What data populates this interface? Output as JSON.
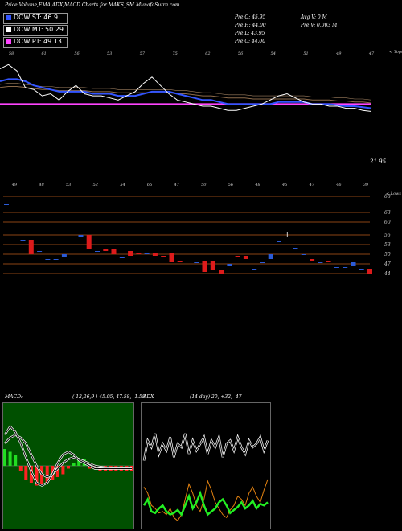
{
  "header": {
    "title": "Price,Volume,EMA,ADX,MACD Charts for MAKS_SM MunafaSutra.com"
  },
  "legend": [
    {
      "label": "DOW ST: 46.9",
      "color": "#3355ff"
    },
    {
      "label": "DOW MT: 50.29",
      "color": "#ffffff"
    },
    {
      "label": "DOW PT: 49.13",
      "color": "#ff44ff"
    }
  ],
  "stats": {
    "prev_open": "Pre   O: 45.95",
    "prev_high": "Pre   H: 44.00",
    "prev_low": "Pre   L: 43.95",
    "prev_close": "Pre   C: 44.00",
    "avg_volume": "Avg V: 0   M",
    "prev_volume": "Pre   V: 0.003 M"
  },
  "ema_panel": {
    "corner_label": "< Tops",
    "last_value": "21.95",
    "top_labels": [
      "58",
      "61",
      "56",
      "53",
      "57",
      "75",
      "62",
      "56",
      "54",
      "51",
      "49",
      "47"
    ],
    "bottom_labels": [
      "49",
      "48",
      "53",
      "52",
      "54",
      "65",
      "47",
      "50",
      "56",
      "48",
      "45",
      "47",
      "46",
      "39"
    ],
    "series_colors": {
      "price": "#ffffff",
      "ema_short": "#3355ff",
      "ema_long": "#8c6a4a",
      "ema_pt": "#ff44ff"
    }
  },
  "price_panel": {
    "corner_label": "< Lows",
    "axis_ticks": [
      "68",
      "63",
      "60",
      "56",
      "53",
      "50",
      "47",
      "44"
    ]
  },
  "macd": {
    "label": "MACD:",
    "params": "( 12,26,9 ) 45.95, 47.58, -1.58"
  },
  "adx": {
    "label": "ADX",
    "params": "(14 day) 20, +32, -47"
  },
  "chart_data": {
    "type": "candlestick",
    "title": "Price,Volume,EMA,ADX,MACD Charts for MAKS_SM MunafaSutra.com",
    "ylim": [
      42,
      70
    ],
    "horizontal_levels": [
      68,
      63,
      60,
      56,
      53,
      50,
      47,
      44
    ],
    "candles": [
      {
        "o": 65.5,
        "c": 65.5,
        "h": 65.5,
        "l": 65.5
      },
      {
        "o": 62.0,
        "c": 62.0,
        "h": 62.0,
        "l": 62.0
      },
      {
        "o": 54.5,
        "c": 54.5,
        "h": 54.5,
        "l": 54.5
      },
      {
        "o": 54.5,
        "c": 50.0,
        "h": 54.5,
        "l": 50.0
      },
      {
        "o": 51.0,
        "c": 51.0,
        "h": 51.0,
        "l": 51.0
      },
      {
        "o": 48.5,
        "c": 48.5,
        "h": 48.5,
        "l": 48.5
      },
      {
        "o": 48.5,
        "c": 48.5,
        "h": 48.5,
        "l": 48.5
      },
      {
        "o": 49.0,
        "c": 50.0,
        "h": 50.0,
        "l": 49.0
      },
      {
        "o": 53.0,
        "c": 53.0,
        "h": 53.0,
        "l": 53.0
      },
      {
        "o": 55.5,
        "c": 56.0,
        "h": 56.0,
        "l": 55.5
      },
      {
        "o": 56.0,
        "c": 51.5,
        "h": 56.0,
        "l": 51.5
      },
      {
        "o": 51.0,
        "c": 51.0,
        "h": 51.0,
        "l": 51.0
      },
      {
        "o": 51.5,
        "c": 51.0,
        "h": 51.5,
        "l": 51.0
      },
      {
        "o": 51.5,
        "c": 50.0,
        "h": 51.5,
        "l": 50.0
      },
      {
        "o": 49.0,
        "c": 49.0,
        "h": 49.0,
        "l": 49.0
      },
      {
        "o": 51.0,
        "c": 49.5,
        "h": 51.0,
        "l": 49.5
      },
      {
        "o": 50.5,
        "c": 50.0,
        "h": 50.5,
        "l": 50.0
      },
      {
        "o": 50.0,
        "c": 50.5,
        "h": 50.5,
        "l": 50.0
      },
      {
        "o": 50.5,
        "c": 49.5,
        "h": 50.5,
        "l": 49.5
      },
      {
        "o": 49.5,
        "c": 49.0,
        "h": 49.5,
        "l": 49.0
      },
      {
        "o": 50.5,
        "c": 47.5,
        "h": 50.5,
        "l": 47.5
      },
      {
        "o": 48.0,
        "c": 47.5,
        "h": 48.0,
        "l": 47.5
      },
      {
        "o": 48.0,
        "c": 48.0,
        "h": 48.0,
        "l": 48.0
      },
      {
        "o": 47.5,
        "c": 47.5,
        "h": 47.5,
        "l": 47.5
      },
      {
        "o": 48.0,
        "c": 44.5,
        "h": 48.0,
        "l": 44.5
      },
      {
        "o": 48.0,
        "c": 45.0,
        "h": 48.0,
        "l": 45.0
      },
      {
        "o": 45.0,
        "c": 44.0,
        "h": 45.0,
        "l": 44.0
      },
      {
        "o": 46.5,
        "c": 47.0,
        "h": 47.0,
        "l": 46.5
      },
      {
        "o": 49.5,
        "c": 49.0,
        "h": 49.5,
        "l": 49.0
      },
      {
        "o": 49.5,
        "c": 48.5,
        "h": 49.5,
        "l": 48.5
      },
      {
        "o": 45.5,
        "c": 45.5,
        "h": 45.5,
        "l": 45.5
      },
      {
        "o": 47.5,
        "c": 47.5,
        "h": 47.5,
        "l": 47.5
      },
      {
        "o": 48.5,
        "c": 50.0,
        "h": 50.0,
        "l": 48.5
      },
      {
        "o": 54.0,
        "c": 54.0,
        "h": 54.0,
        "l": 54.0
      },
      {
        "o": 55.5,
        "c": 55.5,
        "h": 57.0,
        "l": 55.5
      },
      {
        "o": 52.0,
        "c": 52.0,
        "h": 52.0,
        "l": 52.0
      },
      {
        "o": 50.0,
        "c": 50.0,
        "h": 50.0,
        "l": 50.0
      },
      {
        "o": 48.5,
        "c": 48.0,
        "h": 48.5,
        "l": 48.0
      },
      {
        "o": 47.5,
        "c": 47.5,
        "h": 47.5,
        "l": 47.5
      },
      {
        "o": 48.0,
        "c": 47.5,
        "h": 48.0,
        "l": 47.5
      },
      {
        "o": 46.0,
        "c": 46.0,
        "h": 46.0,
        "l": 46.0
      },
      {
        "o": 46.0,
        "c": 46.0,
        "h": 46.0,
        "l": 46.0
      },
      {
        "o": 46.5,
        "c": 47.5,
        "h": 47.5,
        "l": 46.5
      },
      {
        "o": 45.5,
        "c": 45.5,
        "h": 45.5,
        "l": 45.5
      },
      {
        "o": 45.5,
        "c": 44.0,
        "h": 45.5,
        "l": 43.95
      }
    ],
    "ema_panel": {
      "ylim": [
        10,
        70
      ],
      "price_close": [
        64,
        66,
        63,
        55,
        54,
        51,
        52,
        49,
        53,
        56,
        52,
        51,
        51,
        50,
        49,
        51,
        53,
        57,
        60,
        56,
        52,
        49,
        48,
        47,
        46,
        46,
        45,
        44,
        44,
        45,
        46,
        47,
        49,
        51,
        52,
        50,
        48,
        47,
        47,
        46,
        46,
        45,
        45,
        44,
        43.5
      ],
      "ema_short": [
        58,
        59,
        59,
        58,
        56,
        55,
        54,
        53,
        53,
        53,
        53,
        52,
        52,
        52,
        51,
        51,
        51,
        52,
        53,
        53,
        53,
        52,
        51,
        50,
        49,
        49,
        48,
        47,
        47,
        47,
        47,
        47,
        47,
        48,
        48,
        48,
        48,
        47,
        47,
        47,
        46.5,
        46,
        46,
        45.5,
        45
      ],
      "ema_long": [
        55,
        55.5,
        55.5,
        55,
        54.5,
        54,
        54,
        53.5,
        53.5,
        53.5,
        53.5,
        53,
        53,
        53,
        52.5,
        52.5,
        52.5,
        52.5,
        52.5,
        52.5,
        52.5,
        52,
        52,
        51.5,
        51,
        51,
        50.5,
        50,
        50,
        50,
        49.5,
        49.5,
        49.5,
        49.5,
        49.5,
        49.5,
        49.5,
        49,
        49,
        49,
        48.5,
        48.5,
        48,
        48,
        47.5
      ],
      "ema_pt": [
        47,
        47,
        47,
        47,
        47,
        47,
        47,
        47,
        47,
        47,
        47,
        47,
        47,
        47,
        47,
        47,
        47,
        47,
        47,
        47,
        47,
        47,
        47,
        47,
        47,
        47,
        47,
        47,
        47,
        47,
        47,
        47,
        47,
        47,
        47,
        47,
        47,
        47,
        47,
        47,
        47,
        47,
        47,
        47,
        47
      ]
    },
    "macd_series": {
      "macd": [
        0.55,
        0.7,
        0.6,
        0.4,
        0.15,
        -0.1,
        -0.3,
        -0.35,
        -0.3,
        -0.15,
        0.05,
        0.2,
        0.25,
        0.2,
        0.1,
        0.05,
        0.0,
        -0.05,
        -0.05,
        -0.05,
        -0.05,
        -0.05,
        -0.05,
        -0.05,
        -0.05
      ],
      "signal": [
        0.4,
        0.5,
        0.55,
        0.5,
        0.4,
        0.2,
        0.0,
        -0.15,
        -0.2,
        -0.15,
        -0.05,
        0.05,
        0.12,
        0.15,
        0.12,
        0.08,
        0.04,
        0.0,
        -0.02,
        -0.03,
        -0.04,
        -0.04,
        -0.04,
        -0.04,
        -0.04
      ],
      "histogram": [
        0.3,
        0.25,
        0.2,
        -0.1,
        -0.25,
        -0.3,
        -0.35,
        -0.35,
        -0.3,
        -0.25,
        -0.2,
        -0.15,
        -0.05,
        0.05,
        0.1,
        0.12,
        -0.05,
        -0.05,
        -0.1,
        -0.1,
        -0.1,
        -0.1,
        -0.1,
        -0.1,
        -0.1
      ]
    },
    "adx_series": {
      "adx": [
        22,
        28,
        26,
        30,
        24,
        27,
        25,
        29,
        23,
        27,
        26,
        30,
        24,
        28,
        25,
        27,
        29,
        24,
        28,
        26,
        29,
        23,
        27,
        28,
        25,
        29,
        26,
        24,
        28,
        26,
        27,
        29,
        25,
        28
      ],
      "plus_di": [
        30,
        34,
        26,
        25,
        28,
        30,
        26,
        24,
        25,
        27,
        24,
        30,
        36,
        28,
        32,
        38,
        30,
        24,
        26,
        28,
        32,
        34,
        30,
        25,
        27,
        29,
        32,
        28,
        30,
        33,
        28,
        31,
        30,
        32
      ],
      "minus_di": [
        42,
        38,
        30,
        28,
        25,
        26,
        24,
        28,
        22,
        20,
        24,
        34,
        44,
        38,
        30,
        26,
        34,
        46,
        40,
        32,
        28,
        24,
        22,
        27,
        30,
        36,
        34,
        30,
        38,
        42,
        36,
        32,
        40,
        47
      ]
    }
  }
}
